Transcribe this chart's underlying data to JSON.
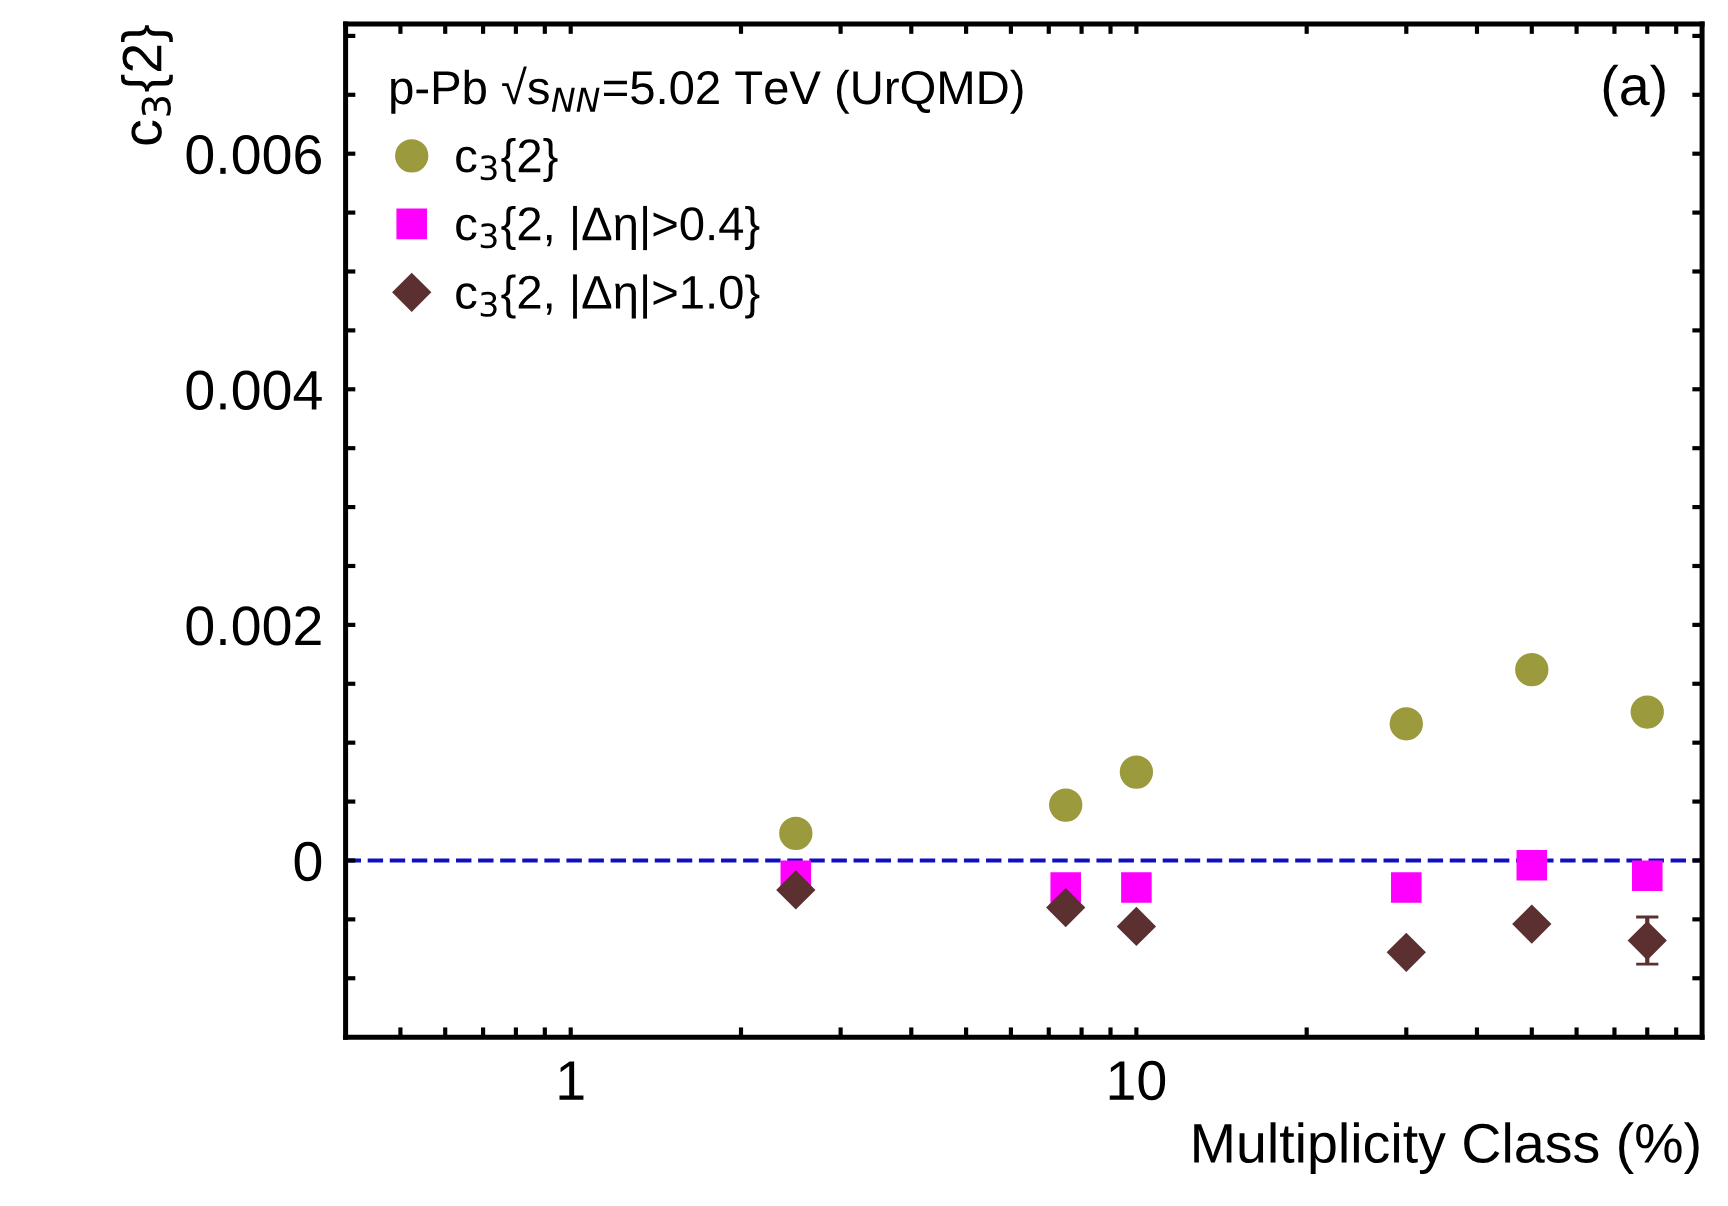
{
  "chart_data": {
    "type": "scatter",
    "xlabel": "Multiplicity Class (%)",
    "ylabel": "c$_{3}${2}",
    "legend_title": "p-Pb √s$_{NN}$=5.02 TeV (UrQMD)",
    "annotations": [
      "(a)"
    ],
    "log": "x",
    "legend": "top left",
    "grid": false,
    "xlim": [
      0.4,
      100
    ],
    "ylim": [
      -0.0015,
      0.0071
    ],
    "xticks": [
      {
        "value": 0.5,
        "label": null
      },
      {
        "value": 0.6,
        "label": null
      },
      {
        "value": 0.7,
        "label": null
      },
      {
        "value": 0.8,
        "label": null
      },
      {
        "value": 0.9,
        "label": null
      },
      1,
      {
        "value": 2,
        "label": null
      },
      {
        "value": 3,
        "label": null
      },
      {
        "value": 4,
        "label": null
      },
      {
        "value": 5,
        "label": null
      },
      {
        "value": 6,
        "label": null
      },
      {
        "value": 7,
        "label": null
      },
      {
        "value": 8,
        "label": null
      },
      {
        "value": 9,
        "label": null
      },
      10,
      {
        "value": 20,
        "label": null
      },
      {
        "value": 30,
        "label": null
      },
      {
        "value": 40,
        "label": null
      },
      {
        "value": 50,
        "label": null
      },
      {
        "value": 60,
        "label": null
      },
      {
        "value": 70,
        "label": null
      },
      {
        "value": 80,
        "label": null
      },
      {
        "value": 90,
        "label": null
      }
    ],
    "yticks": [
      {
        "value": -0.001,
        "label": null
      },
      {
        "value": -0.0005,
        "label": null
      },
      0,
      {
        "value": 0.0005,
        "label": null
      },
      {
        "value": 0.001,
        "label": null
      },
      {
        "value": 0.0015,
        "label": null
      },
      0.002,
      {
        "value": 0.0025,
        "label": null
      },
      {
        "value": 0.003,
        "label": null
      },
      {
        "value": 0.0035,
        "label": null
      },
      0.004,
      {
        "value": 0.0045,
        "label": null
      },
      {
        "value": 0.005,
        "label": null
      },
      {
        "value": 0.0055,
        "label": null
      },
      0.006,
      {
        "value": 0.0065,
        "label": null
      },
      {
        "value": 0.007,
        "label": null
      }
    ],
    "x": [
      2.5,
      7.5,
      10,
      30,
      50,
      80
    ],
    "ref_lines": [
      {
        "axis": "y",
        "value": 0,
        "color": "#1010c0",
        "line_style": "dashed"
      }
    ],
    "series": [
      {
        "name": "c$_{3}${2}",
        "color": "#9b9a3c",
        "marker": "circle",
        "values": [
          0.00023,
          0.00047,
          0.00075,
          0.00116,
          0.00162,
          0.00126
        ]
      },
      {
        "name": "c$_{3}${2, |Δη|>0.4}",
        "color": "#ff00ff",
        "marker": "square",
        "values": [
          -0.00013,
          -0.00023,
          -0.00023,
          -0.00023,
          -4e-05,
          -0.00013
        ]
      },
      {
        "name": "c$_{3}${2, |Δη|>1.0}",
        "color": "#5c3030",
        "marker": "diamond",
        "values": [
          -0.00025,
          -0.0004,
          -0.00056,
          -0.00078,
          -0.00054,
          -0.00068
        ],
        "errors": [
          null,
          null,
          null,
          null,
          null,
          0.0002
        ]
      }
    ]
  }
}
